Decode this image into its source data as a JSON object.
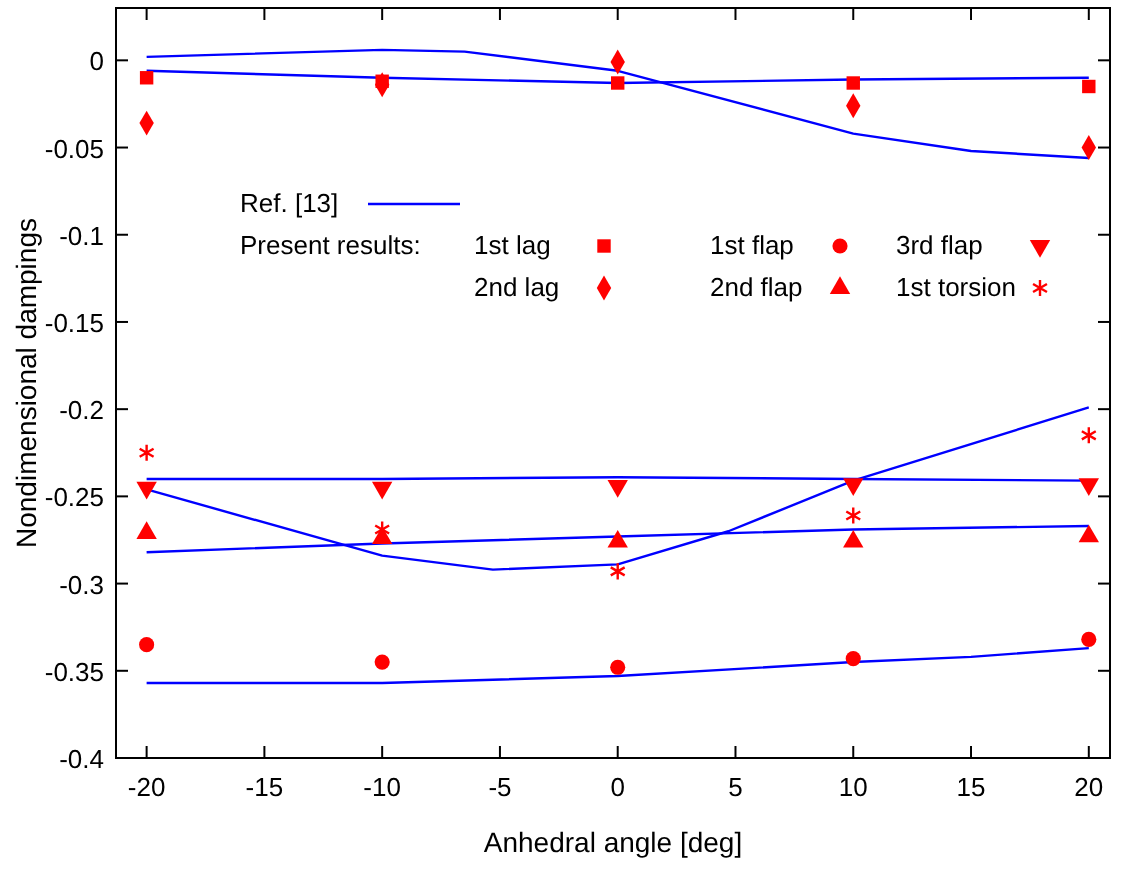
{
  "chart_data": {
    "type": "scatter",
    "xlabel": "Anhedral angle [deg]",
    "ylabel": "Nondimensional dampings",
    "legend": "top",
    "legend_title": "Present results:",
    "grid": false,
    "xlim": [
      -21.3,
      20.9
    ],
    "xticks": [
      -20,
      -15,
      -10,
      -5,
      0,
      5,
      10,
      15,
      20
    ],
    "ylim": [
      -0.4,
      0.03
    ],
    "yticks": [
      0,
      -0.05,
      -0.1,
      -0.15,
      -0.2,
      -0.25,
      -0.3,
      -0.35,
      -0.4
    ],
    "series": [
      {
        "type": "line",
        "name": "Ref. [13]",
        "color": "#0000ff",
        "marker": "none",
        "line_style": "solid",
        "x": [
          -20,
          -10,
          0,
          10,
          20
        ],
        "values": [
          -0.006,
          -0.01,
          -0.013,
          -0.011,
          -0.01
        ]
      },
      {
        "type": "line",
        "color": "#0000ff",
        "marker": "none",
        "line_style": "solid",
        "x": [
          -20,
          -10,
          -6.5,
          0,
          10,
          15,
          20
        ],
        "values": [
          0.002,
          0.006,
          0.005,
          -0.006,
          -0.042,
          -0.052,
          -0.056
        ]
      },
      {
        "type": "line",
        "color": "#0000ff",
        "marker": "none",
        "line_style": "solid",
        "x": [
          -20,
          -10,
          0,
          10,
          15,
          20
        ],
        "values": [
          -0.357,
          -0.357,
          -0.353,
          -0.345,
          -0.342,
          -0.337
        ]
      },
      {
        "type": "line",
        "color": "#0000ff",
        "marker": "none",
        "line_style": "solid",
        "x": [
          -20,
          -10,
          0,
          10,
          20
        ],
        "values": [
          -0.24,
          -0.24,
          -0.239,
          -0.24,
          -0.241
        ]
      },
      {
        "type": "line",
        "color": "#0000ff",
        "marker": "none",
        "line_style": "solid",
        "x": [
          -20,
          -10,
          0,
          10,
          20
        ],
        "values": [
          -0.282,
          -0.277,
          -0.273,
          -0.269,
          -0.267
        ]
      },
      {
        "type": "line",
        "color": "#0000ff",
        "marker": "none",
        "line_style": "solid",
        "x": [
          -20,
          -10,
          -5.3,
          0,
          4.7,
          10,
          20
        ],
        "values": [
          -0.246,
          -0.284,
          -0.292,
          -0.289,
          -0.27,
          -0.241,
          -0.199
        ]
      },
      {
        "name": "1st lag",
        "color": "#ff0000",
        "marker": "square",
        "x": [
          -20,
          -10,
          0,
          10,
          20
        ],
        "values": [
          -0.01,
          -0.012,
          -0.013,
          -0.013,
          -0.015
        ]
      },
      {
        "name": "1st flap",
        "color": "#ff0000",
        "marker": "circle",
        "x": [
          -20,
          -10,
          0,
          10,
          20
        ],
        "values": [
          -0.335,
          -0.345,
          -0.348,
          -0.343,
          -0.332
        ]
      },
      {
        "name": "3rd flap",
        "color": "#ff0000",
        "marker": "triangle-down",
        "x": [
          -20,
          -10,
          0,
          10,
          20
        ],
        "values": [
          -0.245,
          -0.245,
          -0.244,
          -0.243,
          -0.243
        ]
      },
      {
        "name": "2nd lag",
        "color": "#ff0000",
        "marker": "diamond",
        "x": [
          -20,
          -10,
          0,
          10,
          20
        ],
        "values": [
          -0.036,
          -0.014,
          -0.001,
          -0.026,
          -0.05
        ]
      },
      {
        "name": "2nd flap",
        "color": "#ff0000",
        "marker": "triangle",
        "x": [
          -20,
          -10,
          0,
          10,
          20
        ],
        "values": [
          -0.271,
          -0.274,
          -0.276,
          -0.276,
          -0.273
        ]
      },
      {
        "name": "1st torsion",
        "color": "#ff0000",
        "marker": "cross",
        "x": [
          -20,
          -10,
          0,
          10,
          20
        ],
        "values": [
          -0.225,
          -0.269,
          -0.293,
          -0.261,
          -0.215
        ]
      }
    ]
  }
}
